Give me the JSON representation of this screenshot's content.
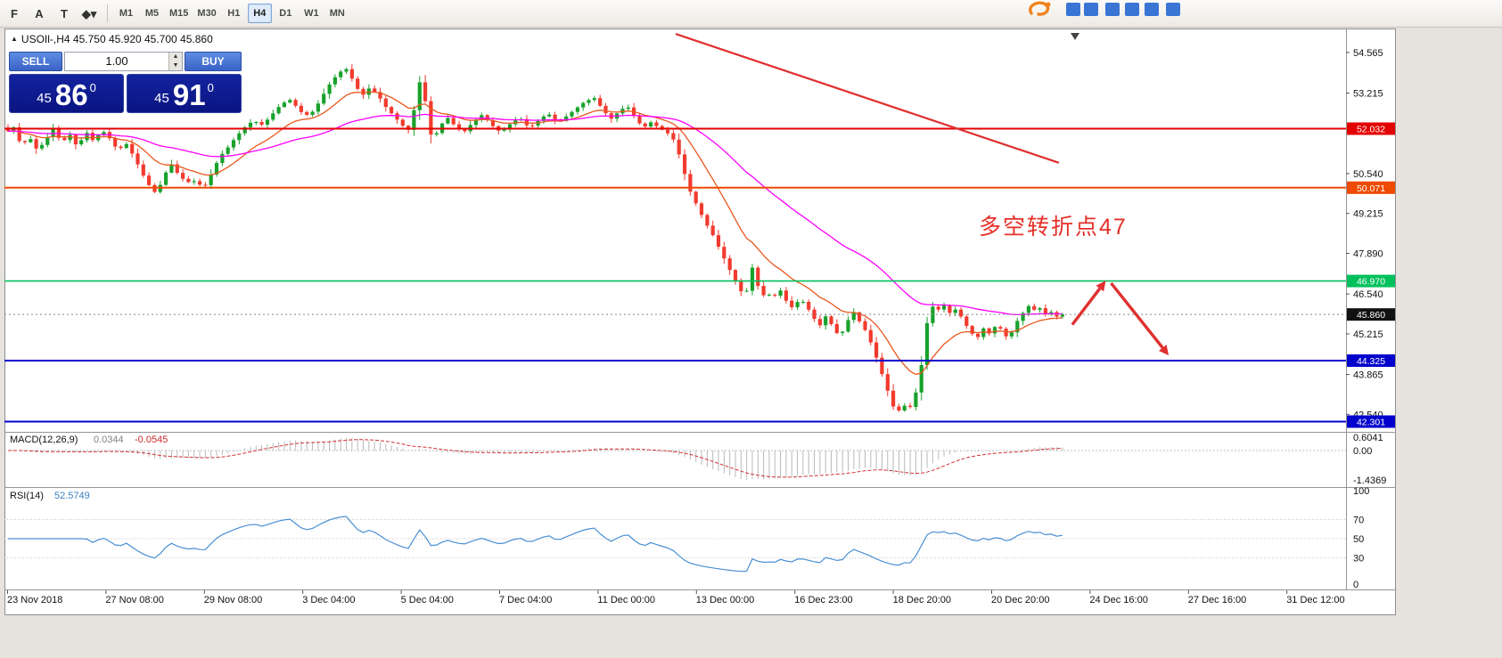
{
  "toolbar": {
    "tool_icons": [
      {
        "name": "chart-profile-icon",
        "glyph": "F"
      },
      {
        "name": "cursor-tool-icon",
        "glyph": "A"
      },
      {
        "name": "text-label-tool-icon",
        "glyph": "T"
      },
      {
        "name": "objects-tool-icon",
        "glyph": "◆▾"
      }
    ],
    "timeframes": [
      "M1",
      "M5",
      "M15",
      "M30",
      "H1",
      "H4",
      "D1",
      "W1",
      "MN"
    ],
    "active_timeframe": "H4"
  },
  "chart_header": {
    "collapse_icon": "▲",
    "title": "USOIl-,H4 45.750 45.920 45.700 45.860"
  },
  "trade_panel": {
    "sell_label": "SELL",
    "buy_label": "BUY",
    "volume_value": "1.00",
    "spin_up_icon": "▲",
    "spin_down_icon": "▼",
    "sell_price_prefix": "45",
    "sell_price_big": "86",
    "sell_price_sup": "0",
    "buy_price_prefix": "45",
    "buy_price_big": "91",
    "buy_price_sup": "0"
  },
  "annotation": {
    "text": "多空转折点47",
    "color": "#e53028"
  },
  "indicators": {
    "macd": {
      "name": "MACD(12,26,9)",
      "value_main": "0.0344",
      "value_signal": "-0.0545",
      "scale_max": "0.6041",
      "scale_zero": "0.00",
      "scale_min": "-1.4369"
    },
    "rsi": {
      "name": "RSI(14)",
      "value": "52.5749",
      "scale_labels": [
        "100",
        "70",
        "50",
        "30",
        "0"
      ],
      "scale_values": [
        100,
        70,
        50,
        30,
        0
      ]
    }
  },
  "price_scale": {
    "ticks": [
      "54.565",
      "53.215",
      "50.540",
      "49.215",
      "47.890",
      "46.540",
      "45.215",
      "43.865",
      "42.540"
    ],
    "tick_values": [
      54.565,
      53.215,
      50.54,
      49.215,
      47.89,
      46.54,
      45.215,
      43.865,
      42.54
    ]
  },
  "time_scale": {
    "labels": [
      "23 Nov 2018",
      "27 Nov 08:00",
      "29 Nov 08:00",
      "3 Dec 04:00",
      "5 Dec 04:00",
      "7 Dec 04:00",
      "11 Dec 00:00",
      "13 Dec 00:00",
      "16 Dec 23:00",
      "18 Dec 20:00",
      "20 Dec 20:00",
      "24 Dec 16:00",
      "27 Dec 16:00",
      "31 Dec 12:00"
    ]
  },
  "chart_data": {
    "type": "candlestick",
    "symbol": "USOIl-",
    "timeframe": "H4",
    "ohlc_current": {
      "open": 45.75,
      "high": 45.92,
      "low": 45.7,
      "close": 45.86
    },
    "price_range": {
      "min": 41.96,
      "max": 55.36
    },
    "bar_count": 188,
    "last_bar_fraction": 0.787,
    "candle_colors": {
      "up": "#18a22b",
      "down": "#f23b2e"
    },
    "close_path": [
      [
        0.0,
        51.95
      ],
      [
        0.004,
        52.1
      ],
      [
        0.01,
        51.45
      ],
      [
        0.016,
        51.75
      ],
      [
        0.022,
        51.3
      ],
      [
        0.028,
        51.65
      ],
      [
        0.034,
        52.05
      ],
      [
        0.04,
        51.55
      ],
      [
        0.046,
        51.85
      ],
      [
        0.052,
        51.4
      ],
      [
        0.058,
        51.95
      ],
      [
        0.064,
        51.6
      ],
      [
        0.07,
        52.0
      ],
      [
        0.076,
        51.7
      ],
      [
        0.082,
        51.3
      ],
      [
        0.088,
        51.55
      ],
      [
        0.094,
        51.1
      ],
      [
        0.1,
        50.55
      ],
      [
        0.106,
        50.1
      ],
      [
        0.111,
        49.85
      ],
      [
        0.116,
        50.45
      ],
      [
        0.122,
        50.85
      ],
      [
        0.128,
        50.45
      ],
      [
        0.134,
        50.25
      ],
      [
        0.14,
        50.3
      ],
      [
        0.146,
        50.05
      ],
      [
        0.152,
        50.55
      ],
      [
        0.158,
        51.1
      ],
      [
        0.164,
        51.4
      ],
      [
        0.17,
        51.75
      ],
      [
        0.176,
        52.05
      ],
      [
        0.183,
        52.3
      ],
      [
        0.19,
        52.15
      ],
      [
        0.197,
        52.5
      ],
      [
        0.204,
        52.85
      ],
      [
        0.211,
        53.0
      ],
      [
        0.218,
        52.6
      ],
      [
        0.225,
        52.45
      ],
      [
        0.232,
        52.9
      ],
      [
        0.239,
        53.45
      ],
      [
        0.246,
        53.85
      ],
      [
        0.252,
        54.05
      ],
      [
        0.258,
        53.6
      ],
      [
        0.264,
        53.1
      ],
      [
        0.27,
        53.4
      ],
      [
        0.276,
        53.15
      ],
      [
        0.282,
        52.75
      ],
      [
        0.288,
        52.45
      ],
      [
        0.294,
        52.15
      ],
      [
        0.3,
        51.95
      ],
      [
        0.305,
        53.1
      ],
      [
        0.309,
        53.95
      ],
      [
        0.313,
        52.3
      ],
      [
        0.317,
        51.6
      ],
      [
        0.322,
        52.1
      ],
      [
        0.328,
        52.4
      ],
      [
        0.334,
        52.1
      ],
      [
        0.34,
        51.9
      ],
      [
        0.347,
        52.25
      ],
      [
        0.354,
        52.5
      ],
      [
        0.361,
        52.15
      ],
      [
        0.368,
        51.9
      ],
      [
        0.375,
        52.2
      ],
      [
        0.382,
        52.4
      ],
      [
        0.389,
        52.05
      ],
      [
        0.396,
        52.3
      ],
      [
        0.403,
        52.55
      ],
      [
        0.41,
        52.2
      ],
      [
        0.417,
        52.45
      ],
      [
        0.424,
        52.7
      ],
      [
        0.431,
        52.95
      ],
      [
        0.438,
        53.05
      ],
      [
        0.444,
        52.65
      ],
      [
        0.45,
        52.35
      ],
      [
        0.456,
        52.6
      ],
      [
        0.462,
        52.8
      ],
      [
        0.468,
        52.4
      ],
      [
        0.474,
        52.05
      ],
      [
        0.48,
        52.25
      ],
      [
        0.486,
        52.05
      ],
      [
        0.492,
        51.9
      ],
      [
        0.498,
        51.6
      ],
      [
        0.503,
        50.85
      ],
      [
        0.508,
        50.05
      ],
      [
        0.514,
        49.5
      ],
      [
        0.52,
        48.95
      ],
      [
        0.526,
        48.5
      ],
      [
        0.532,
        47.95
      ],
      [
        0.538,
        47.4
      ],
      [
        0.544,
        46.85
      ],
      [
        0.549,
        46.5
      ],
      [
        0.553,
        46.75
      ],
      [
        0.557,
        47.8
      ],
      [
        0.561,
        46.35
      ],
      [
        0.566,
        46.6
      ],
      [
        0.571,
        46.4
      ],
      [
        0.576,
        46.7
      ],
      [
        0.581,
        46.3
      ],
      [
        0.586,
        46.05
      ],
      [
        0.591,
        46.4
      ],
      [
        0.596,
        46.15
      ],
      [
        0.601,
        45.75
      ],
      [
        0.606,
        45.5
      ],
      [
        0.611,
        45.85
      ],
      [
        0.616,
        45.4
      ],
      [
        0.621,
        45.1
      ],
      [
        0.626,
        45.6
      ],
      [
        0.631,
        45.95
      ],
      [
        0.636,
        45.6
      ],
      [
        0.641,
        45.25
      ],
      [
        0.646,
        44.7
      ],
      [
        0.651,
        44.05
      ],
      [
        0.656,
        43.4
      ],
      [
        0.66,
        42.85
      ],
      [
        0.664,
        42.6
      ],
      [
        0.668,
        42.9
      ],
      [
        0.672,
        42.65
      ],
      [
        0.676,
        43.05
      ],
      [
        0.68,
        43.6
      ],
      [
        0.684,
        44.9
      ],
      [
        0.688,
        46.25
      ],
      [
        0.693,
        45.95
      ],
      [
        0.698,
        46.2
      ],
      [
        0.703,
        45.9
      ],
      [
        0.708,
        46.05
      ],
      [
        0.713,
        45.65
      ],
      [
        0.718,
        45.3
      ],
      [
        0.723,
        45.05
      ],
      [
        0.728,
        45.4
      ],
      [
        0.733,
        45.2
      ],
      [
        0.738,
        45.55
      ],
      [
        0.743,
        45.25
      ],
      [
        0.747,
        45.0
      ],
      [
        0.751,
        45.5
      ],
      [
        0.755,
        45.75
      ],
      [
        0.759,
        46.0
      ],
      [
        0.763,
        46.2
      ],
      [
        0.767,
        45.95
      ],
      [
        0.771,
        46.1
      ],
      [
        0.775,
        45.85
      ],
      [
        0.779,
        45.95
      ],
      [
        0.783,
        45.78
      ],
      [
        0.787,
        45.86
      ]
    ],
    "moving_averages": [
      {
        "name": "fast",
        "period": 13,
        "color": "#e8571d"
      },
      {
        "name": "slow",
        "period": 45,
        "color": "#ff00ff"
      }
    ],
    "hlines": [
      {
        "price": 52.032,
        "label": "52.032",
        "color": "#e30202",
        "width": 2
      },
      {
        "price": 50.071,
        "label": "50.071",
        "color": "#ee4a02",
        "width": 2
      },
      {
        "price": 46.97,
        "label": "46.970",
        "color": "#00c05c",
        "width": 1.6
      },
      {
        "price": 44.325,
        "label": "44.325",
        "color": "#0202cc",
        "width": 2
      },
      {
        "price": 42.301,
        "label": "42.301",
        "color": "#0202cc",
        "width": 2
      }
    ],
    "bid_line": {
      "price": 45.86,
      "label": "45.860",
      "label_bg": "#111111"
    },
    "trendline": {
      "color": "#e03030",
      "x1_frac": 0.501,
      "price1": 55.18,
      "x2_frac": 0.787,
      "price2": 50.9
    },
    "arrows": [
      {
        "x1_frac": 0.797,
        "price1": 45.52,
        "x2_frac": 0.822,
        "price2": 46.98,
        "color": "#e03030"
      },
      {
        "x1_frac": 0.826,
        "price1": 46.9,
        "x2_frac": 0.869,
        "price2": 44.5,
        "color": "#e03030"
      }
    ],
    "macd_settings": {
      "fast": 12,
      "slow": 26,
      "signal": 9,
      "scale_max": 0.6041,
      "scale_min": -1.4369,
      "histogram_color": "#b9b9b9",
      "signal_color": "#d23030"
    },
    "rsi_settings": {
      "period": 14,
      "color": "#4a8fd3",
      "levels": [
        70,
        50,
        30
      ]
    }
  }
}
